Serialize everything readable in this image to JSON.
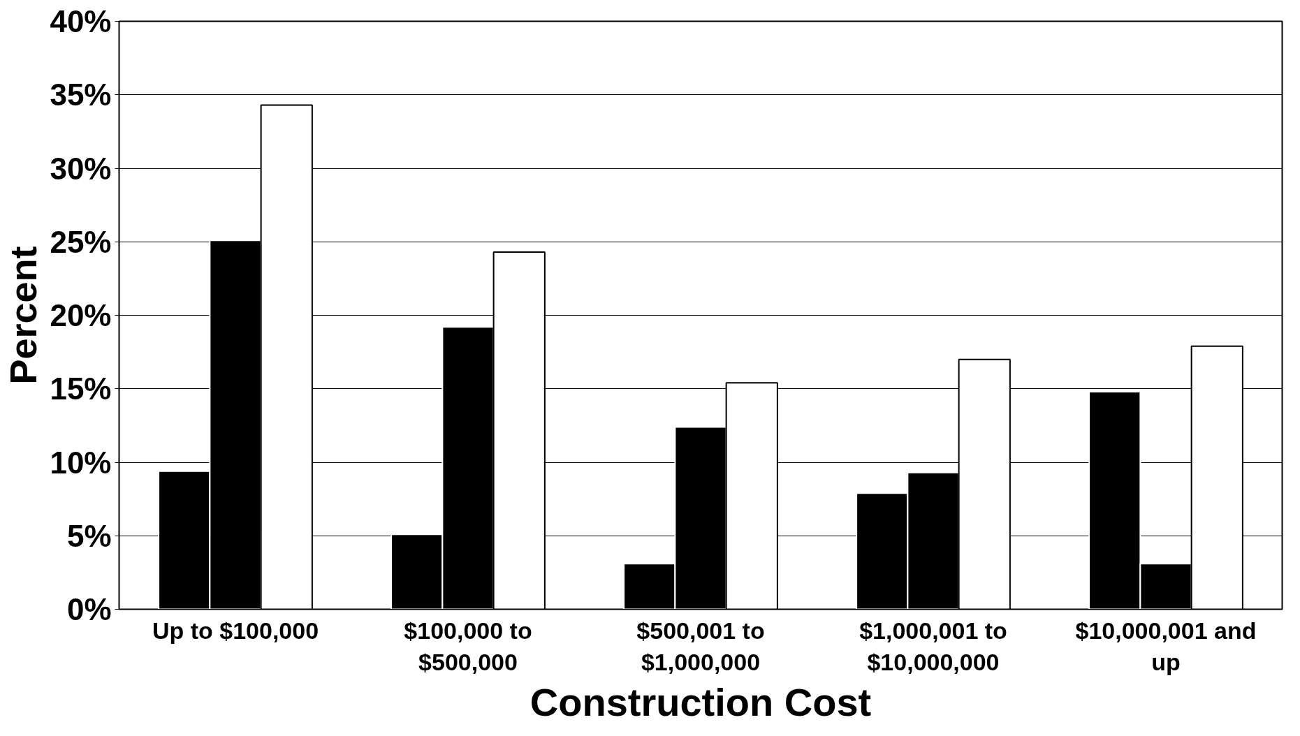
{
  "chart_data": {
    "type": "bar",
    "xlabel": "Construction Cost",
    "ylabel": "Percent",
    "categories": [
      "Up to $100,000",
      "$100,000 to $500,000",
      "$500,001 to $1,000,000",
      "$1,000,001 to $10,000,000",
      "$10,000,001 and up"
    ],
    "series": [
      {
        "color": "#000000",
        "values": [
          9.4,
          5.1,
          3.1,
          7.9,
          14.8
        ]
      },
      {
        "color": "#000000",
        "values": [
          25.1,
          19.2,
          12.4,
          9.3,
          3.1
        ]
      },
      {
        "color": "#ffffff",
        "values": [
          34.3,
          24.3,
          15.4,
          17.0,
          17.9
        ]
      }
    ],
    "ylim": [
      0,
      40
    ],
    "yticks": [
      {
        "value": 0,
        "label": "0%"
      },
      {
        "value": 5,
        "label": "5%"
      },
      {
        "value": 10,
        "label": "10%"
      },
      {
        "value": 15,
        "label": "15%"
      },
      {
        "value": 20,
        "label": "20%"
      },
      {
        "value": 25,
        "label": "25%"
      },
      {
        "value": 30,
        "label": "30%"
      },
      {
        "value": 35,
        "label": "35%"
      },
      {
        "value": 40,
        "label": "40%"
      }
    ],
    "grid": "y"
  }
}
